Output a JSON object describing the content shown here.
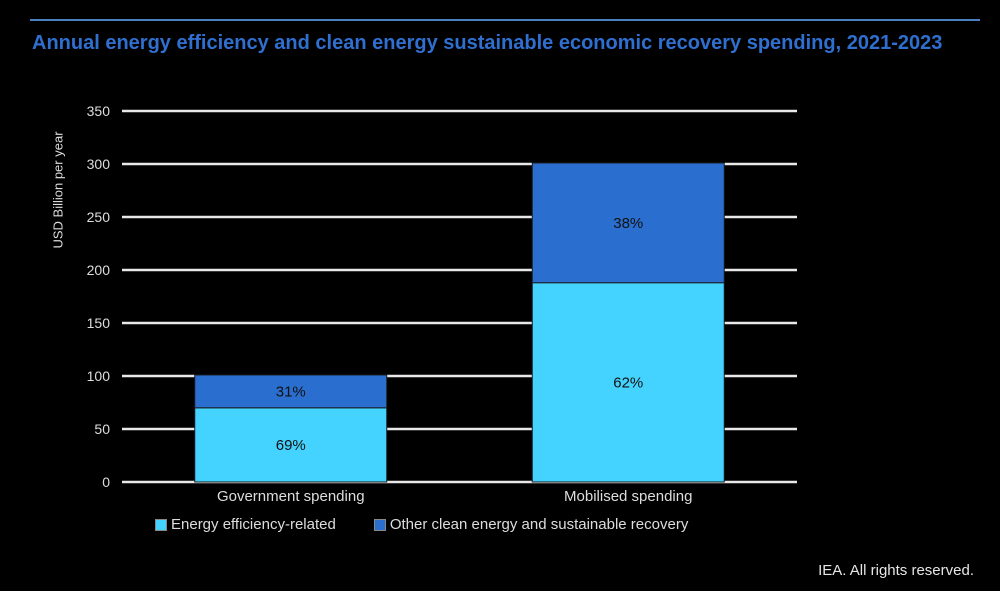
{
  "header": {
    "title": "Annual energy efficiency and clean energy sustainable economic recovery spending, 2021-2023"
  },
  "footer": {
    "credit": "IEA. All rights reserved."
  },
  "chart_data": {
    "type": "bar",
    "stacked": true,
    "categories": [
      "Government spending",
      "Mobilised spending"
    ],
    "series": [
      {
        "name": "Energy efficiency-related",
        "color": "#44d3ff",
        "values": [
          70,
          188
        ],
        "labels": [
          "69%",
          "62%"
        ]
      },
      {
        "name": "Other clean energy and sustainable recovery",
        "color": "#2a6fcf",
        "values": [
          31,
          113
        ],
        "labels": [
          "31%",
          "38%"
        ]
      }
    ],
    "ylabel": "USD Billion per year",
    "xlabel": "",
    "ylim": [
      0,
      350
    ],
    "yticks": [
      0,
      50,
      100,
      150,
      200,
      250,
      300,
      350
    ],
    "grid": true,
    "legend_position": "bottom"
  }
}
